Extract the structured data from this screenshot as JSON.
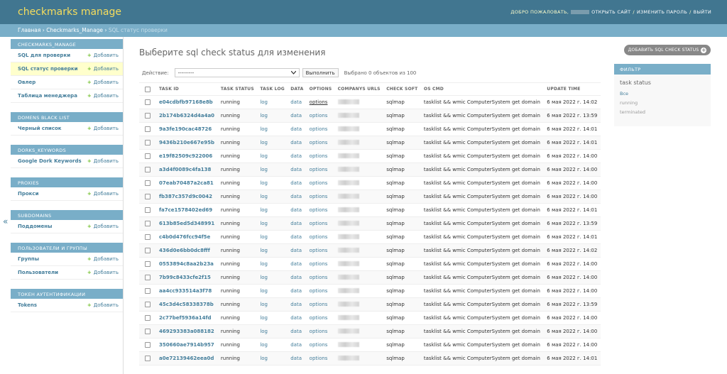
{
  "header": {
    "brand": "checkmarks manage",
    "welcome": "ДОБРО ПОЖАЛОВАТЬ,",
    "view_site": "ОТКРЫТЬ САЙТ",
    "change_password": "ИЗМЕНИТЬ ПАРОЛЬ",
    "logout": "ВЫЙТИ",
    "sep": "/"
  },
  "breadcrumbs": {
    "home": "Главная",
    "app": "Checkmarks_Manage",
    "current": "SQL статус проверки",
    "sep": "›"
  },
  "sidebar": {
    "add_label": "Добавить",
    "collapse_glyph": "«",
    "modules": [
      {
        "caption": "CHECKMARKS_MANAGE",
        "items": [
          {
            "label": "SQL для проверки"
          },
          {
            "label": "SQL статус проверки",
            "selected": true
          },
          {
            "label": "Овлер"
          },
          {
            "label": "Таблица менеджера"
          }
        ]
      },
      {
        "caption": "DOMENS BLACK LIST",
        "items": [
          {
            "label": "Черный список"
          }
        ]
      },
      {
        "caption": "DORKS_KEYWORDS",
        "items": [
          {
            "label": "Google Dork Keywords"
          }
        ]
      },
      {
        "caption": "PROXIES",
        "items": [
          {
            "label": "Прокси"
          }
        ]
      },
      {
        "caption": "SUBDOMAINS",
        "items": [
          {
            "label": "Поддомены"
          }
        ]
      },
      {
        "caption": "ПОЛЬЗОВАТЕЛИ И ГРУППЫ",
        "items": [
          {
            "label": "Группы"
          },
          {
            "label": "Пользователи"
          }
        ]
      },
      {
        "caption": "ТОКЕН АУТЕНТИФИКАЦИИ",
        "items": [
          {
            "label": "Tokens"
          }
        ]
      }
    ]
  },
  "main": {
    "title": "Выберите sql check status для изменения",
    "add_button": "ДОБАВИТЬ SQL CHECK STATUS",
    "actions": {
      "label": "Действие:",
      "selected": "---------",
      "go": "Выполнить",
      "count": "Выбрано 0 объектов из 100"
    },
    "columns": [
      "TASK ID",
      "TASK STATUS",
      "TASK LOG",
      "DATA",
      "OPTIONS",
      "COMPANYS URLS",
      "CHECK SOFT",
      "OS CMD",
      "UPDATE TIME"
    ],
    "rows": [
      {
        "task_id": "e04cdbfb97168e8b",
        "status": "running",
        "log": "log",
        "data": "data",
        "options": "options",
        "soft": "sqlmap",
        "cmd": "tasklist && wmic ComputerSystem get domain",
        "time": "6 мая 2022 г. 14:02"
      },
      {
        "task_id": "2b174b6324d4a4a0",
        "status": "running",
        "log": "log",
        "data": "data",
        "options": "options",
        "soft": "sqlmap",
        "cmd": "tasklist && wmic ComputerSystem get domain",
        "time": "6 мая 2022 г. 13:59"
      },
      {
        "task_id": "9a3fe190cac48726",
        "status": "running",
        "log": "log",
        "data": "data",
        "options": "options",
        "soft": "sqlmap",
        "cmd": "tasklist && wmic ComputerSystem get domain",
        "time": "6 мая 2022 г. 14:01"
      },
      {
        "task_id": "9436b210e667e95b",
        "status": "running",
        "log": "log",
        "data": "data",
        "options": "options",
        "soft": "sqlmap",
        "cmd": "tasklist && wmic ComputerSystem get domain",
        "time": "6 мая 2022 г. 14:01"
      },
      {
        "task_id": "e19f82509c922006",
        "status": "running",
        "log": "log",
        "data": "data",
        "options": "options",
        "soft": "sqlmap",
        "cmd": "tasklist && wmic ComputerSystem get domain",
        "time": "6 мая 2022 г. 14:00"
      },
      {
        "task_id": "a3d4f0089c4fa138",
        "status": "running",
        "log": "log",
        "data": "data",
        "options": "options",
        "soft": "sqlmap",
        "cmd": "tasklist && wmic ComputerSystem get domain",
        "time": "6 мая 2022 г. 14:00"
      },
      {
        "task_id": "07eab70487a2ca81",
        "status": "running",
        "log": "log",
        "data": "data",
        "options": "options",
        "soft": "sqlmap",
        "cmd": "tasklist && wmic ComputerSystem get domain",
        "time": "6 мая 2022 г. 14:00"
      },
      {
        "task_id": "fb387c357d9c0042",
        "status": "running",
        "log": "log",
        "data": "data",
        "options": "options",
        "soft": "sqlmap",
        "cmd": "tasklist && wmic ComputerSystem get domain",
        "time": "6 мая 2022 г. 14:00"
      },
      {
        "task_id": "fa7ce1578402ed69",
        "status": "running",
        "log": "log",
        "data": "data",
        "options": "options",
        "soft": "sqlmap",
        "cmd": "tasklist && wmic ComputerSystem get domain",
        "time": "6 мая 2022 г. 14:01"
      },
      {
        "task_id": "613b85ed5d348991",
        "status": "running",
        "log": "log",
        "data": "data",
        "options": "options",
        "soft": "sqlmap",
        "cmd": "tasklist && wmic ComputerSystem get domain",
        "time": "6 мая 2022 г. 13:59"
      },
      {
        "task_id": "c4b0d476fcc94f5e",
        "status": "running",
        "log": "log",
        "data": "data",
        "options": "options",
        "soft": "sqlmap",
        "cmd": "tasklist && wmic ComputerSystem get domain",
        "time": "6 мая 2022 г. 14:01"
      },
      {
        "task_id": "436d0e6bb0dc8fff",
        "status": "running",
        "log": "log",
        "data": "data",
        "options": "options",
        "soft": "sqlmap",
        "cmd": "tasklist && wmic ComputerSystem get domain",
        "time": "6 мая 2022 г. 14:02"
      },
      {
        "task_id": "0553894c8aa2b23a",
        "status": "running",
        "log": "log",
        "data": "data",
        "options": "options",
        "soft": "sqlmap",
        "cmd": "tasklist && wmic ComputerSystem get domain",
        "time": "6 мая 2022 г. 14:00"
      },
      {
        "task_id": "7b99c8433cfe2f15",
        "status": "running",
        "log": "log",
        "data": "data",
        "options": "options",
        "soft": "sqlmap",
        "cmd": "tasklist && wmic ComputerSystem get domain",
        "time": "6 мая 2022 г. 14:00"
      },
      {
        "task_id": "aa4cc933514a3f78",
        "status": "running",
        "log": "log",
        "data": "data",
        "options": "options",
        "soft": "sqlmap",
        "cmd": "tasklist && wmic ComputerSystem get domain",
        "time": "6 мая 2022 г. 14:00"
      },
      {
        "task_id": "45c3d4c58338378b",
        "status": "running",
        "log": "log",
        "data": "data",
        "options": "options",
        "soft": "sqlmap",
        "cmd": "tasklist && wmic ComputerSystem get domain",
        "time": "6 мая 2022 г. 13:59"
      },
      {
        "task_id": "2c77bef5936a14fd",
        "status": "running",
        "log": "log",
        "data": "data",
        "options": "options",
        "soft": "sqlmap",
        "cmd": "tasklist && wmic ComputerSystem get domain",
        "time": "6 мая 2022 г. 14:00"
      },
      {
        "task_id": "469293383a088182",
        "status": "running",
        "log": "log",
        "data": "data",
        "options": "options",
        "soft": "sqlmap",
        "cmd": "tasklist && wmic ComputerSystem get domain",
        "time": "6 мая 2022 г. 14:00"
      },
      {
        "task_id": "350660ae7914b957",
        "status": "running",
        "log": "log",
        "data": "data",
        "options": "options",
        "soft": "sqlmap",
        "cmd": "tasklist && wmic ComputerSystem get domain",
        "time": "6 мая 2022 г. 14:00"
      },
      {
        "task_id": "a0e72139462eea0d",
        "status": "running",
        "log": "log",
        "data": "data",
        "options": "options",
        "soft": "sqlmap",
        "cmd": "tasklist && wmic ComputerSystem get domain",
        "time": "6 мая 2022 г. 14:01"
      }
    ]
  },
  "filter": {
    "caption": "ФИЛЬТР",
    "title": "task status",
    "options": [
      {
        "label": "Все",
        "selected": true
      },
      {
        "label": "running"
      },
      {
        "label": "terminated"
      }
    ]
  },
  "colors": {
    "header_bg": "#417690",
    "brand": "#f5dd5d",
    "breadcrumb_bg": "#79aec8",
    "link": "#447e9b",
    "selected_row": "#ffffcc",
    "add_plus": "#70bf2b",
    "add_button_bg": "#888888"
  }
}
